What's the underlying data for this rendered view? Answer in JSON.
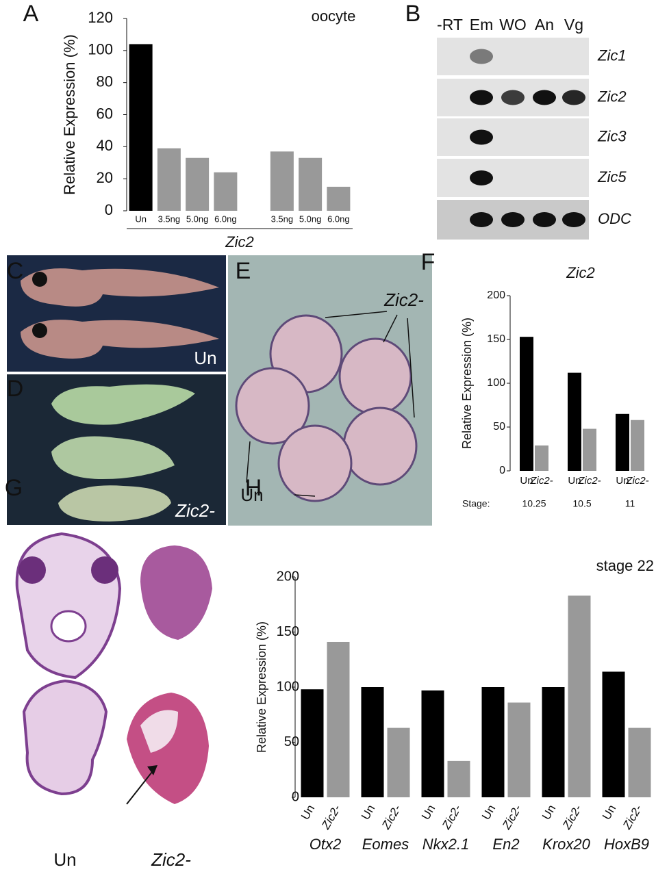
{
  "panel_labels": [
    "A",
    "B",
    "C",
    "D",
    "E",
    "F",
    "G",
    "H"
  ],
  "gel": {
    "lanes": [
      "-RT",
      "Em",
      "WO",
      "An",
      "Vg"
    ],
    "genes": [
      "Zic1",
      "Zic2",
      "Zic3",
      "Zic5",
      "ODC"
    ]
  },
  "photo_labels": {
    "C": "Un",
    "D": "Zic2-",
    "E_treated": "Zic2-",
    "E_control": "Un",
    "G_control": "Un",
    "G_treated": "Zic2-"
  },
  "chart_data": [
    {
      "type": "bar",
      "ylabel": "Relative Expression (%)",
      "annotation": "oocyte",
      "group_label": "Zic2",
      "categories": [
        "Un",
        "3.5ng",
        "5.0ng",
        "6.0ng",
        null,
        "3.5ng",
        "5.0ng",
        "6.0ng"
      ],
      "values": [
        104,
        39,
        33,
        24,
        null,
        37,
        33,
        15
      ],
      "colors": [
        "#000000",
        "#999999",
        "#999999",
        "#999999",
        null,
        "#999999",
        "#999999",
        "#999999"
      ],
      "ylim": [
        0,
        120
      ],
      "yticks": [
        0,
        20,
        40,
        60,
        80,
        100,
        120
      ]
    },
    {
      "type": "grouped_bar",
      "title": "Zic2",
      "ylabel": "Relative Expression (%)",
      "category_label": "Stage:",
      "categories": [
        "10.25",
        "10.5",
        "11"
      ],
      "series": [
        {
          "name": "Un",
          "color": "#000000",
          "values": [
            153,
            112,
            65
          ]
        },
        {
          "name": "Zic2-",
          "color": "#999999",
          "values": [
            29,
            48,
            58
          ]
        }
      ],
      "ylim": [
        0,
        200
      ],
      "yticks": [
        0,
        50,
        100,
        150,
        200
      ]
    },
    {
      "type": "grouped_bar",
      "title": "stage 22",
      "ylabel": "Relative Expression (%)",
      "categories": [
        "Otx2",
        "Eomes",
        "Nkx2.1",
        "En2",
        "Krox20",
        "HoxB9"
      ],
      "series": [
        {
          "name": "Un",
          "color": "#000000",
          "values": [
            98,
            100,
            97,
            100,
            100,
            114
          ]
        },
        {
          "name": "Zic2-",
          "color": "#999999",
          "values": [
            141,
            63,
            33,
            86,
            183,
            63
          ]
        }
      ],
      "ylim": [
        0,
        200
      ],
      "yticks": [
        0,
        50,
        100,
        150,
        200
      ]
    }
  ]
}
